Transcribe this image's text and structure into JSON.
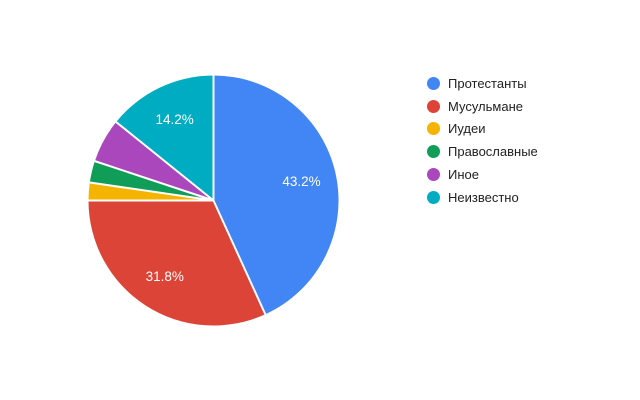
{
  "chart_data": {
    "type": "pie",
    "categories": [
      "Протестанты",
      "Мусульмане",
      "Иудеи",
      "Православные",
      "Иное",
      "Неизвестно"
    ],
    "values": [
      43.2,
      31.8,
      2.3,
      2.8,
      5.7,
      14.2
    ],
    "colors": [
      "#4285F4",
      "#DB4437",
      "#F4B400",
      "#0F9D58",
      "#AB47BC",
      "#00ACC1"
    ],
    "slice_labels": [
      "43.2%",
      "31.8%",
      "",
      "",
      "",
      "14.2%"
    ],
    "legend_position": "right",
    "legend_marker_shape": "circle",
    "slice_border_color": "#ffffff",
    "legend_text_color": "#222222",
    "slice_label_color": "#ffffff",
    "background_color": "#ffffff",
    "start_angle_deg": 0,
    "direction": "clockwise"
  }
}
